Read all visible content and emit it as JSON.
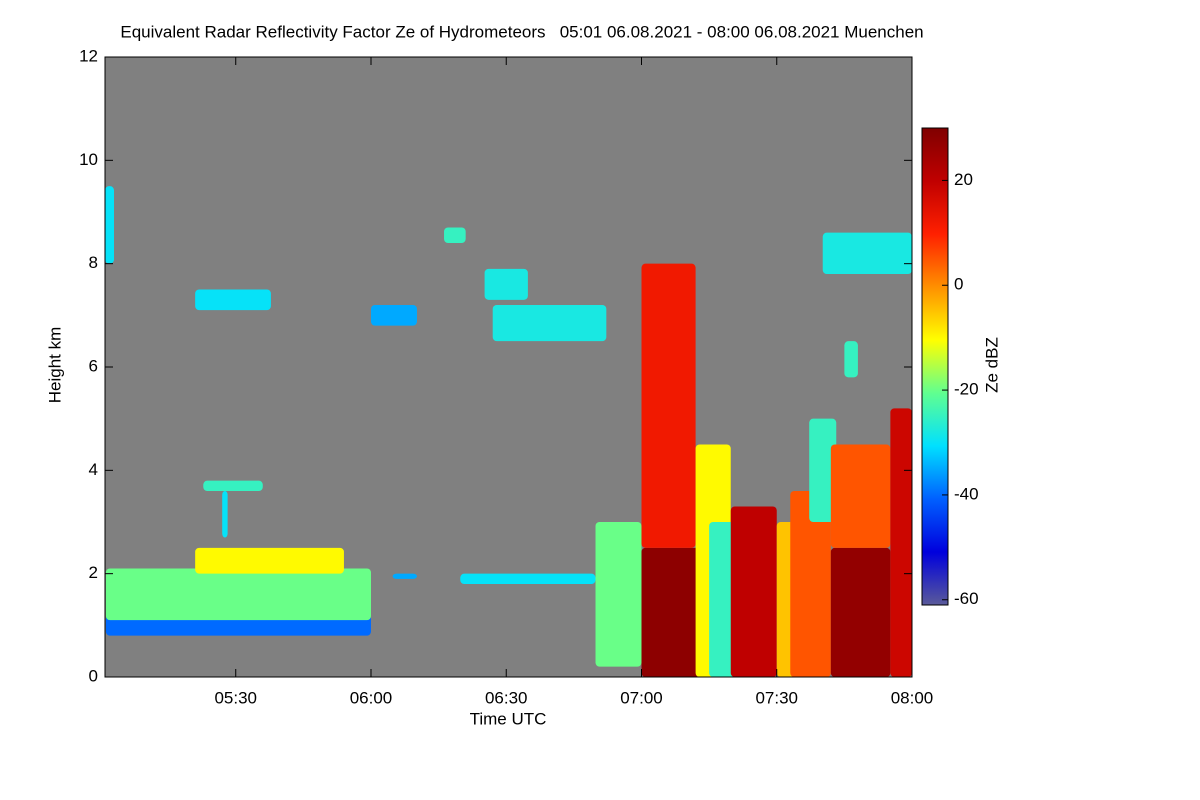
{
  "chart_data": {
    "type": "heatmap",
    "title": "Equivalent Radar Reflectivity Factor Ze of Hydrometeors   05:01 06.08.2021 - 08:00 06.08.2021 Muenchen",
    "x_label": "Time UTC",
    "y_label": "Height km",
    "colorbar_label": "Ze dBZ",
    "background": "#808080",
    "xlim": [
      5.0167,
      8.0
    ],
    "xticks": [
      {
        "value": 5.5,
        "label": "05:30"
      },
      {
        "value": 6.0,
        "label": "06:00"
      },
      {
        "value": 6.5,
        "label": "06:30"
      },
      {
        "value": 7.0,
        "label": "07:00"
      },
      {
        "value": 7.5,
        "label": "07:30"
      },
      {
        "value": 8.0,
        "label": "08:00"
      }
    ],
    "ylim": [
      0,
      12
    ],
    "yticks": [
      0,
      2,
      4,
      6,
      8,
      10,
      12
    ],
    "clim": [
      -61,
      30
    ],
    "cticks": [
      -60,
      -40,
      -20,
      0,
      20
    ],
    "colormap": [
      "#5a5a9a",
      "#0000dd",
      "#0060ff",
      "#00e0ff",
      "#60ff90",
      "#ffff00",
      "#ff9000",
      "#ff2000",
      "#c00000",
      "#800000"
    ],
    "echoes": {
      "t0": [
        5.02,
        5.02,
        5.35,
        5.38,
        5.45,
        6.08,
        6.33,
        5.35,
        6.0,
        6.27,
        6.42,
        6.45,
        5.017,
        7.67,
        7.75,
        6.83,
        7.0,
        7.0,
        7.2,
        7.25,
        7.33,
        7.5,
        7.55,
        7.62,
        7.7,
        7.7,
        7.92
      ],
      "t1": [
        6.0,
        6.0,
        5.9,
        5.6,
        5.47,
        6.17,
        6.83,
        5.63,
        6.17,
        6.35,
        6.58,
        6.87,
        5.05,
        8.0,
        7.8,
        7.0,
        7.25,
        7.2,
        7.33,
        7.42,
        7.5,
        7.62,
        7.7,
        7.72,
        7.92,
        7.92,
        8.0
      ],
      "h0": [
        0.8,
        1.1,
        2.0,
        3.6,
        2.7,
        1.9,
        1.8,
        7.1,
        6.8,
        8.4,
        7.3,
        6.5,
        8.0,
        7.8,
        5.8,
        0.2,
        0,
        2.5,
        0,
        0,
        0,
        0,
        0,
        3.0,
        0,
        2.5,
        0
      ],
      "h1": [
        1.2,
        2.1,
        2.5,
        3.8,
        3.6,
        2.0,
        2.0,
        7.5,
        7.2,
        8.7,
        7.9,
        7.2,
        9.5,
        8.6,
        6.5,
        3.0,
        2.5,
        8.0,
        4.5,
        3.0,
        3.3,
        3.0,
        3.6,
        5.0,
        2.5,
        4.5,
        5.2
      ],
      "ze": [
        -40,
        -20,
        -10,
        -25,
        -30,
        -35,
        -30,
        -30,
        -35,
        -25,
        -28,
        -28,
        -30,
        -28,
        -25,
        -20,
        28,
        12,
        -10,
        -25,
        20,
        -5,
        5,
        -25,
        27,
        5,
        18
      ]
    }
  }
}
